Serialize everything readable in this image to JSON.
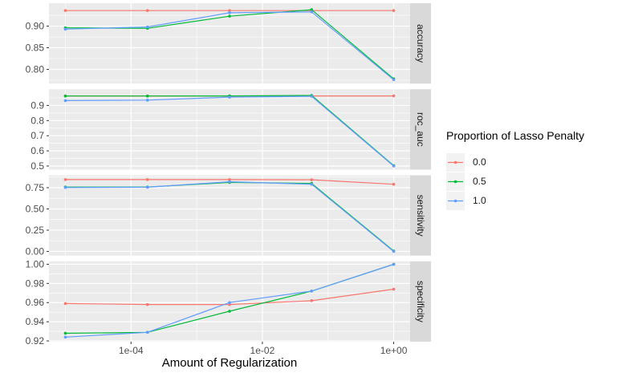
{
  "chart_data": {
    "type": "line",
    "title": "",
    "xlabel": "Amount of Regularization",
    "ylabel": "",
    "x_scale": "log10",
    "x_log10": [
      -5,
      -3.75,
      -2.5,
      -1.25,
      0
    ],
    "x_axis": {
      "domain_log10": [
        -5.25,
        0.25
      ],
      "major_ticks_log10": [
        -4,
        -2,
        0
      ],
      "major_tick_labels": [
        "1e-04",
        "1e-02",
        "1e+00"
      ],
      "minor_ticks_log10": [
        -5,
        -3,
        -1
      ]
    },
    "legend": {
      "title": "Proportion of Lasso Penalty",
      "position": "right",
      "entries": [
        {
          "label": "0.0",
          "color": "#F8766D"
        },
        {
          "label": "0.5",
          "color": "#00BA38"
        },
        {
          "label": "1.0",
          "color": "#619CFF"
        }
      ]
    },
    "facets": [
      {
        "label": "accuracy",
        "ylim": [
          0.767,
          0.953
        ],
        "yticks": [
          0.8,
          0.85,
          0.9
        ],
        "ytick_labels": [
          "0.80",
          "0.85",
          "0.90"
        ],
        "yminor": [
          0.775,
          0.825,
          0.875,
          0.925
        ],
        "series": [
          {
            "name": "0.0",
            "values": [
              0.936,
              0.936,
              0.936,
              0.936,
              0.936
            ]
          },
          {
            "name": "0.5",
            "values": [
              0.896,
              0.895,
              0.923,
              0.938,
              0.778
            ]
          },
          {
            "name": "1.0",
            "values": [
              0.893,
              0.898,
              0.931,
              0.933,
              0.776
            ]
          }
        ]
      },
      {
        "label": "roc_auc",
        "ylim": [
          0.476,
          1.007
        ],
        "yticks": [
          0.5,
          0.6,
          0.7,
          0.8,
          0.9
        ],
        "ytick_labels": [
          "0.5",
          "0.6",
          "0.7",
          "0.8",
          "0.9"
        ],
        "yminor": [
          0.55,
          0.65,
          0.75,
          0.85,
          0.95
        ],
        "series": [
          {
            "name": "0.0",
            "values": [
              0.963,
              0.963,
              0.963,
              0.963,
              0.963
            ]
          },
          {
            "name": "0.5",
            "values": [
              0.962,
              0.962,
              0.963,
              0.966,
              0.503
            ]
          },
          {
            "name": "1.0",
            "values": [
              0.932,
              0.935,
              0.955,
              0.96,
              0.5
            ]
          }
        ]
      },
      {
        "label": "sensitivity",
        "ylim": [
          -0.05,
          0.896
        ],
        "yticks": [
          0.0,
          0.25,
          0.5,
          0.75
        ],
        "ytick_labels": [
          "0.00",
          "0.25",
          "0.50",
          "0.75"
        ],
        "yminor": [
          0.125,
          0.375,
          0.625,
          0.875
        ],
        "series": [
          {
            "name": "0.0",
            "values": [
              0.845,
              0.845,
              0.845,
              0.843,
              0.79
            ]
          },
          {
            "name": "0.5",
            "values": [
              0.757,
              0.757,
              0.812,
              0.8,
              0.005
            ]
          },
          {
            "name": "1.0",
            "values": [
              0.752,
              0.755,
              0.82,
              0.79,
              0.0
            ]
          }
        ]
      },
      {
        "label": "specificity",
        "ylim": [
          0.9192,
          1.0031
        ],
        "yticks": [
          0.92,
          0.94,
          0.96,
          0.98,
          1.0
        ],
        "ytick_labels": [
          "0.92",
          "0.94",
          "0.96",
          "0.98",
          "1.00"
        ],
        "yminor": [
          0.93,
          0.95,
          0.97,
          0.99
        ],
        "series": [
          {
            "name": "0.0",
            "values": [
              0.959,
              0.958,
              0.958,
              0.962,
              0.974
            ]
          },
          {
            "name": "0.5",
            "values": [
              0.928,
              0.929,
              0.951,
              0.972,
              1.0
            ]
          },
          {
            "name": "1.0",
            "values": [
              0.924,
              0.929,
              0.96,
              0.972,
              1.0
            ]
          }
        ]
      }
    ],
    "colors": {
      "panel_bg": "#EBEBEB",
      "grid": "#FFFFFF",
      "strip_bg": "#D9D9D9",
      "strip_text": "#1A1A1A",
      "axis_text": "#4D4D4D",
      "tick_mark": "#333333",
      "legend_key_bg": "#F2F2F2"
    }
  }
}
